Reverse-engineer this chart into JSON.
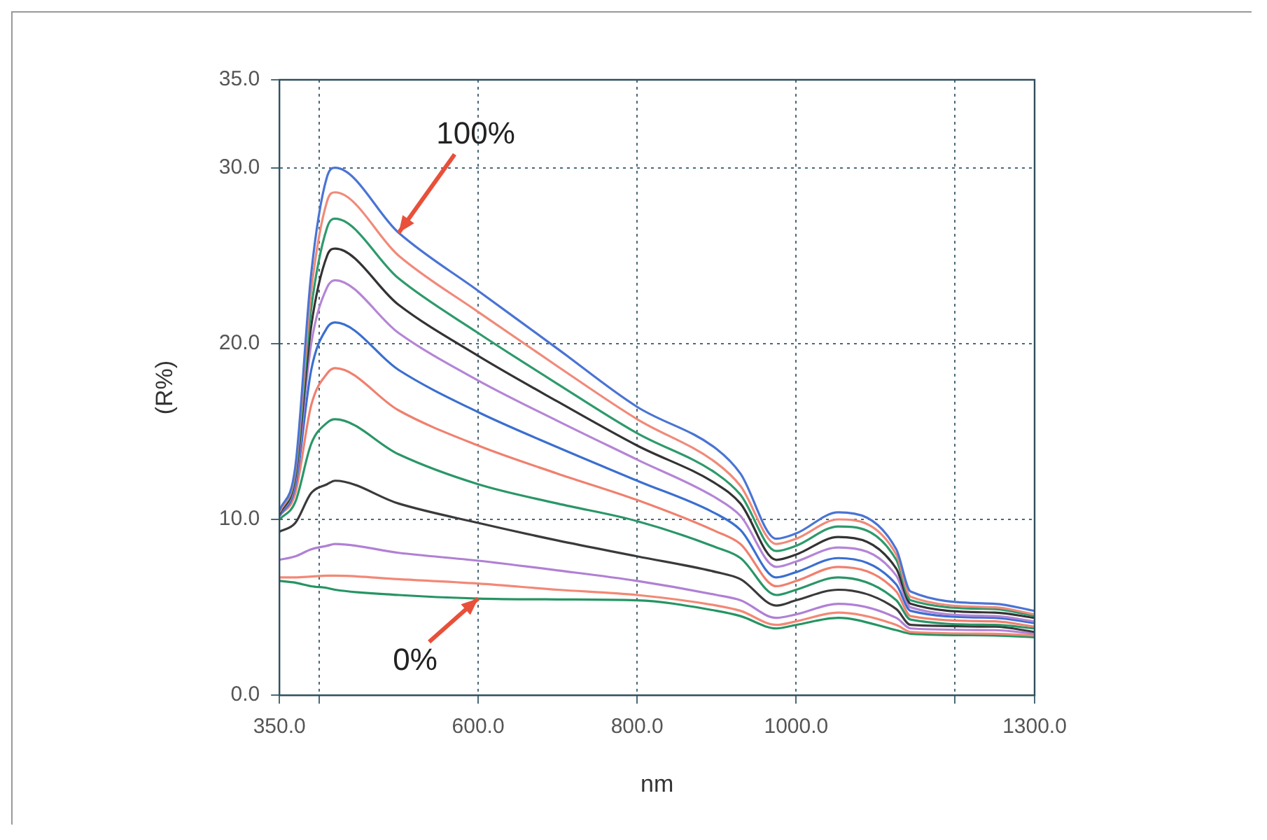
{
  "chart_data": {
    "type": "line",
    "xlabel": "nm",
    "ylabel": "(R%)",
    "x": [
      350,
      370,
      390,
      410,
      420,
      500,
      600,
      700,
      800,
      900,
      930,
      975,
      1000,
      1053,
      1126,
      1144,
      1250,
      1300
    ],
    "xlim": [
      350,
      1300
    ],
    "xticks": [
      {
        "value": 350,
        "label": "350.0"
      },
      {
        "value": 400,
        "label": null
      },
      {
        "value": 600,
        "label": "600.0"
      },
      {
        "value": 800,
        "label": "800.0"
      },
      {
        "value": 1000,
        "label": "1000.0"
      },
      {
        "value": 1200,
        "label": null
      },
      {
        "value": 1300,
        "label": "1300.0"
      }
    ],
    "ylim": [
      0,
      35
    ],
    "yticks": [
      {
        "value": 0,
        "label": "0.0"
      },
      {
        "value": 10,
        "label": "10.0"
      },
      {
        "value": 20,
        "label": "20.0"
      },
      {
        "value": 30,
        "label": "30.0"
      },
      {
        "value": 35,
        "label": "35.0"
      }
    ],
    "grid": true,
    "legend": false,
    "marker": "none",
    "line_style": "solid",
    "annotations": [
      {
        "text": "100%",
        "x": 500,
        "y": 26.3
      },
      {
        "text": "0%",
        "x": 600,
        "y": 5.5
      }
    ],
    "series": [
      {
        "color": "#4a74d4",
        "values": [
          10.5,
          13,
          24,
          29.5,
          30.0,
          26.3,
          23.0,
          19.7,
          16.4,
          14.0,
          12.6,
          8.9,
          9.2,
          10.4,
          8.3,
          5.9,
          5.2,
          4.8
        ]
      },
      {
        "color": "#f08a7a",
        "values": [
          10.4,
          12.8,
          23,
          28.1,
          28.6,
          25.0,
          21.8,
          18.7,
          15.7,
          13.2,
          11.9,
          8.6,
          8.9,
          10.0,
          8.0,
          5.6,
          5.0,
          4.6
        ]
      },
      {
        "color": "#2e9a6c",
        "values": [
          10.4,
          12.6,
          22,
          26.6,
          27.1,
          23.7,
          20.6,
          17.7,
          14.9,
          12.6,
          11.4,
          8.2,
          8.5,
          9.6,
          7.7,
          5.4,
          4.9,
          4.5
        ]
      },
      {
        "color": "#333333",
        "values": [
          10.3,
          12.4,
          21,
          25.0,
          25.4,
          22.2,
          19.3,
          16.7,
          14.2,
          12.0,
          10.9,
          7.7,
          8.0,
          9.0,
          7.2,
          5.2,
          4.7,
          4.4
        ]
      },
      {
        "color": "#b485d6",
        "values": [
          10.3,
          12.2,
          20,
          23.2,
          23.6,
          20.6,
          17.9,
          15.6,
          13.4,
          11.2,
          10.2,
          7.3,
          7.6,
          8.4,
          6.8,
          5.0,
          4.5,
          4.2
        ]
      },
      {
        "color": "#3a6fd0",
        "values": [
          10.2,
          11.9,
          18.5,
          20.9,
          21.2,
          18.5,
          16.1,
          14.1,
          12.2,
          10.3,
          9.4,
          6.7,
          7.0,
          7.8,
          6.3,
          4.8,
          4.4,
          4.1
        ]
      },
      {
        "color": "#f0806e",
        "values": [
          10.2,
          11.5,
          16.5,
          18.3,
          18.6,
          16.2,
          14.2,
          12.6,
          11.1,
          9.3,
          8.6,
          6.2,
          6.5,
          7.3,
          5.9,
          4.5,
          4.2,
          3.9
        ]
      },
      {
        "color": "#2a9668",
        "values": [
          10.0,
          11.0,
          14.3,
          15.5,
          15.7,
          13.7,
          12.0,
          10.9,
          9.9,
          8.4,
          7.8,
          5.7,
          6.0,
          6.7,
          5.4,
          4.3,
          4.0,
          3.8
        ]
      },
      {
        "color": "#3a3a3a",
        "values": [
          9.3,
          9.8,
          11.5,
          12.0,
          12.2,
          10.9,
          9.8,
          8.8,
          7.9,
          7.0,
          6.6,
          5.1,
          5.4,
          6.0,
          4.9,
          4.0,
          3.9,
          3.6
        ]
      },
      {
        "color": "#b080d4",
        "values": [
          7.7,
          7.9,
          8.3,
          8.5,
          8.6,
          8.1,
          7.65,
          7.1,
          6.5,
          5.7,
          5.4,
          4.4,
          4.6,
          5.2,
          4.4,
          3.8,
          3.7,
          3.5
        ]
      },
      {
        "color": "#f28876",
        "values": [
          6.7,
          6.7,
          6.75,
          6.8,
          6.8,
          6.6,
          6.35,
          6.0,
          5.7,
          5.1,
          4.8,
          4.0,
          4.2,
          4.7,
          4.0,
          3.6,
          3.5,
          3.4
        ]
      },
      {
        "color": "#259463",
        "values": [
          6.5,
          6.4,
          6.2,
          6.1,
          6.0,
          5.7,
          5.5,
          5.45,
          5.4,
          4.8,
          4.5,
          3.8,
          4.0,
          4.4,
          3.7,
          3.5,
          3.4,
          3.3
        ]
      }
    ]
  }
}
